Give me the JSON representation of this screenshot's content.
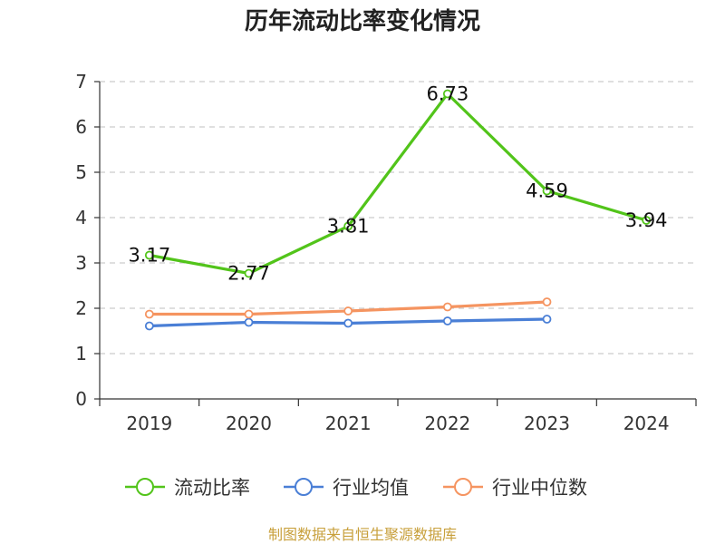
{
  "chart_data": {
    "type": "line",
    "title": "历年流动比率变化情况",
    "categories": [
      "2019",
      "2020",
      "2021",
      "2022",
      "2023",
      "2024"
    ],
    "ylim": [
      0,
      7
    ],
    "yticks": [
      "0",
      "1",
      "2",
      "3",
      "4",
      "5",
      "6",
      "7"
    ],
    "grid": true,
    "legend_position": "bottom",
    "series": [
      {
        "name": "流动比率",
        "color": "#52c41a",
        "values": [
          3.17,
          2.77,
          3.81,
          6.73,
          4.59,
          3.94
        ],
        "labels": [
          "3.17",
          "2.77",
          "3.81",
          "6.73",
          "4.59",
          "3.94"
        ]
      },
      {
        "name": "行业均值",
        "color": "#4a7fd6",
        "values": [
          1.61,
          1.69,
          1.67,
          1.72,
          1.76,
          null
        ]
      },
      {
        "name": "行业中位数",
        "color": "#f59460",
        "values": [
          1.87,
          1.87,
          1.94,
          2.03,
          2.14,
          null
        ]
      }
    ],
    "source": "制图数据来自恒生聚源数据库"
  }
}
